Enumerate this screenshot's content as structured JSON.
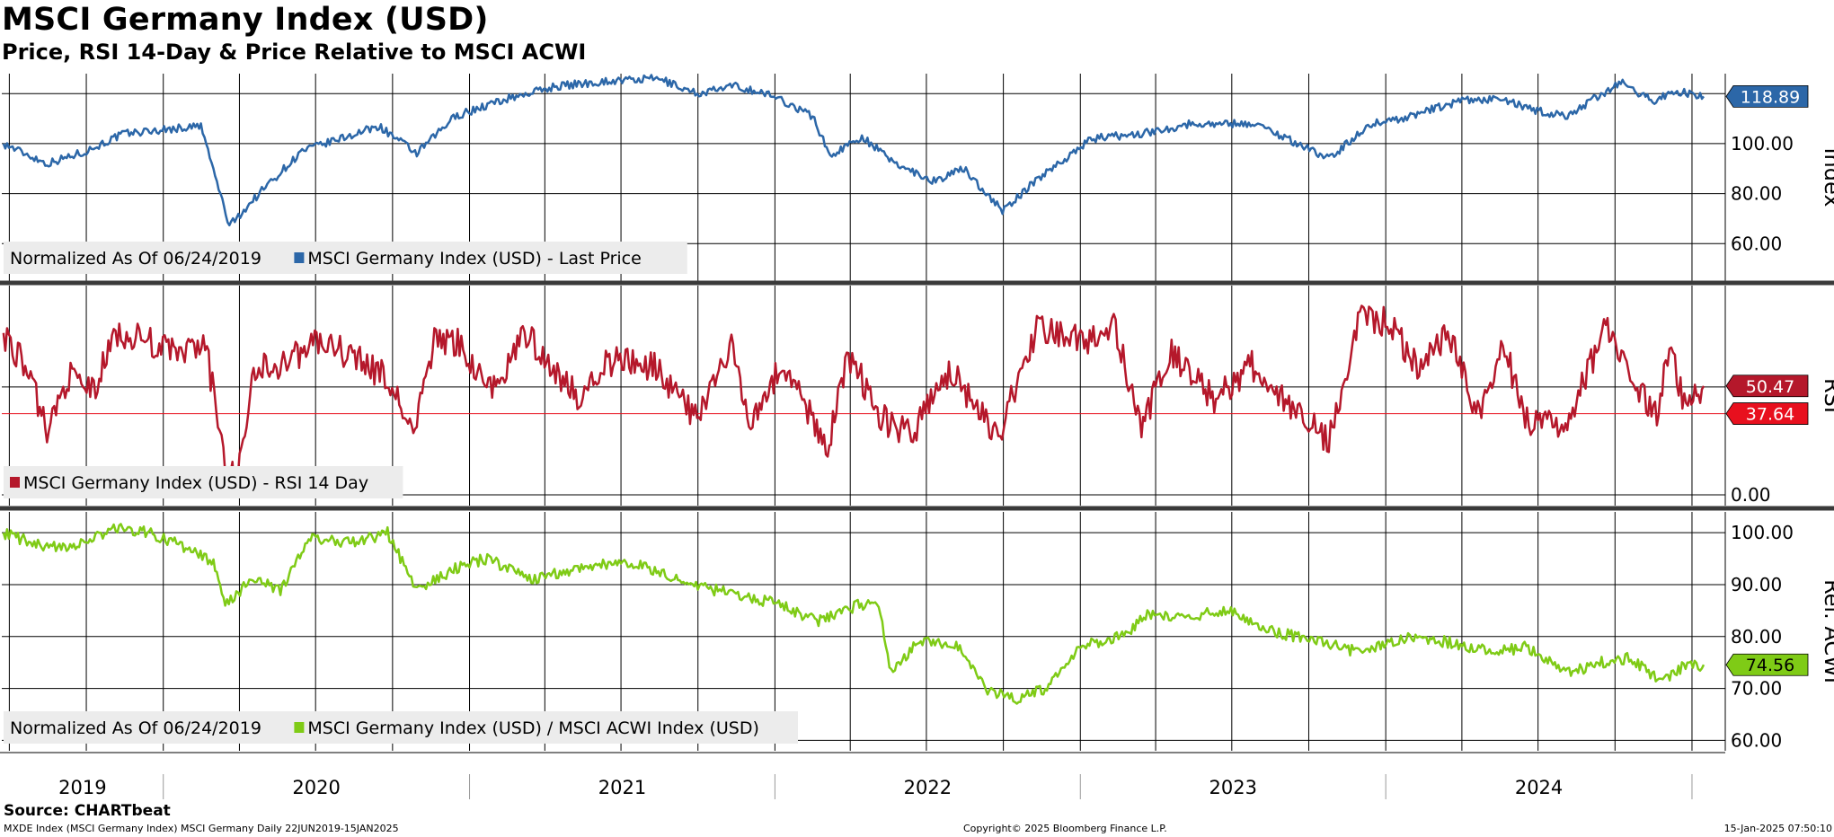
{
  "header": {
    "title": "MSCI Germany Index (USD)",
    "subtitle": "Price, RSI 14-Day & Price Relative to MSCI ACWI"
  },
  "footer": {
    "source": "Source: CHARTbeat",
    "ticker_info": "MXDE Index (MSCI Germany Index) MSCI Germany  Daily 22JUN2019-15JAN2025",
    "copyright": "Copyright© 2025 Bloomberg Finance L.P.",
    "timestamp": "15-Jan-2025 07:50:10"
  },
  "colors": {
    "price": "#2c67a8",
    "rsi": "#b5182b",
    "relative": "#7fcb16",
    "rsi_flag_current": "#e8101e",
    "grid": "#000000",
    "legend_bg": "#ececec"
  },
  "chart_data": [
    {
      "type": "line",
      "name": "price-panel",
      "axis_label": "Index",
      "ylim": [
        45,
        128
      ],
      "yticks": [
        "60.00",
        "80.00",
        "100.00"
      ],
      "ytick_values": [
        60,
        80,
        100
      ],
      "legend_note": "Normalized As Of 06/24/2019",
      "series": [
        {
          "name": "MSCI Germany Index (USD) - Last Price",
          "last_value_label": "118.89",
          "points": [
            [
              "2019-06-24",
              100
            ],
            [
              "2019-08-15",
              92
            ],
            [
              "2019-10-01",
              97
            ],
            [
              "2019-11-15",
              104
            ],
            [
              "2020-01-15",
              106
            ],
            [
              "2020-02-15",
              107
            ],
            [
              "2020-03-20",
              67
            ],
            [
              "2020-04-30",
              82
            ],
            [
              "2020-06-15",
              97
            ],
            [
              "2020-07-31",
              102
            ],
            [
              "2020-09-15",
              107
            ],
            [
              "2020-10-30",
              96
            ],
            [
              "2020-12-15",
              111
            ],
            [
              "2021-02-15",
              118
            ],
            [
              "2021-04-15",
              123
            ],
            [
              "2021-06-15",
              125
            ],
            [
              "2021-08-15",
              126
            ],
            [
              "2021-09-30",
              120
            ],
            [
              "2021-11-15",
              123
            ],
            [
              "2021-12-31",
              119
            ],
            [
              "2022-02-15",
              111
            ],
            [
              "2022-03-08",
              95
            ],
            [
              "2022-04-15",
              103
            ],
            [
              "2022-05-20",
              93
            ],
            [
              "2022-07-10",
              85
            ],
            [
              "2022-08-15",
              90
            ],
            [
              "2022-09-30",
              73
            ],
            [
              "2022-11-15",
              87
            ],
            [
              "2023-01-15",
              102
            ],
            [
              "2023-03-15",
              104
            ],
            [
              "2023-05-15",
              108
            ],
            [
              "2023-07-30",
              108
            ],
            [
              "2023-10-25",
              94
            ],
            [
              "2023-12-15",
              108
            ],
            [
              "2024-01-20",
              110
            ],
            [
              "2024-03-30",
              117
            ],
            [
              "2024-05-15",
              118
            ],
            [
              "2024-06-30",
              113
            ],
            [
              "2024-08-05",
              111
            ],
            [
              "2024-09-25",
              122
            ],
            [
              "2024-10-10",
              124
            ],
            [
              "2024-11-15",
              117
            ],
            [
              "2024-12-10",
              121
            ],
            [
              "2025-01-15",
              118.89
            ]
          ]
        }
      ]
    },
    {
      "type": "line",
      "name": "rsi-panel",
      "axis_label": "RSI",
      "ylim": [
        -5,
        97
      ],
      "yticks": [
        "0.00"
      ],
      "ytick_values": [
        0
      ],
      "reference_line": 37.64,
      "reference_label": "37.64",
      "legend_note": "",
      "series": [
        {
          "name": "MSCI Germany Index (USD) - RSI 14 Day",
          "last_value_label": "50.47",
          "points": [
            [
              "2019-06-24",
              75
            ],
            [
              "2019-07-20",
              60
            ],
            [
              "2019-08-15",
              30
            ],
            [
              "2019-09-10",
              55
            ],
            [
              "2019-10-10",
              48
            ],
            [
              "2019-11-05",
              75
            ],
            [
              "2019-12-10",
              72
            ],
            [
              "2020-01-20",
              65
            ],
            [
              "2020-02-20",
              70
            ],
            [
              "2020-03-15",
              15
            ],
            [
              "2020-03-28",
              8
            ],
            [
              "2020-04-20",
              58
            ],
            [
              "2020-06-01",
              62
            ],
            [
              "2020-06-30",
              72
            ],
            [
              "2020-08-10",
              65
            ],
            [
              "2020-09-20",
              55
            ],
            [
              "2020-10-28",
              30
            ],
            [
              "2020-11-20",
              72
            ],
            [
              "2020-12-20",
              70
            ],
            [
              "2021-01-28",
              48
            ],
            [
              "2021-03-10",
              75
            ],
            [
              "2021-05-10",
              45
            ],
            [
              "2021-06-15",
              62
            ],
            [
              "2021-08-10",
              60
            ],
            [
              "2021-09-30",
              35
            ],
            [
              "2021-11-10",
              68
            ],
            [
              "2021-12-01",
              35
            ],
            [
              "2022-01-10",
              60
            ],
            [
              "2022-03-05",
              22
            ],
            [
              "2022-03-30",
              65
            ],
            [
              "2022-05-10",
              35
            ],
            [
              "2022-06-15",
              28
            ],
            [
              "2022-07-30",
              58
            ],
            [
              "2022-09-25",
              27
            ],
            [
              "2022-11-10",
              78
            ],
            [
              "2023-01-10",
              70
            ],
            [
              "2023-02-10",
              80
            ],
            [
              "2023-03-15",
              32
            ],
            [
              "2023-04-20",
              65
            ],
            [
              "2023-06-10",
              45
            ],
            [
              "2023-07-25",
              60
            ],
            [
              "2023-09-20",
              38
            ],
            [
              "2023-10-25",
              25
            ],
            [
              "2023-12-01",
              82
            ],
            [
              "2024-01-05",
              80
            ],
            [
              "2024-02-10",
              58
            ],
            [
              "2024-03-15",
              76
            ],
            [
              "2024-04-20",
              38
            ],
            [
              "2024-05-20",
              70
            ],
            [
              "2024-06-20",
              32
            ],
            [
              "2024-08-05",
              33
            ],
            [
              "2024-09-20",
              78
            ],
            [
              "2024-10-15",
              58
            ],
            [
              "2024-11-20",
              36
            ],
            [
              "2024-12-05",
              68
            ],
            [
              "2024-12-25",
              40
            ],
            [
              "2025-01-15",
              50.47
            ]
          ]
        }
      ]
    },
    {
      "type": "line",
      "name": "relative-panel",
      "axis_label": "Rel. ACWI",
      "ylim": [
        58,
        104
      ],
      "yticks": [
        "60.00",
        "70.00",
        "80.00",
        "90.00",
        "100.00"
      ],
      "ytick_values": [
        60,
        70,
        80,
        90,
        100
      ],
      "legend_note": "Normalized As Of 06/24/2019",
      "series": [
        {
          "name": "MSCI Germany Index (USD) / MSCI ACWI Index (USD)",
          "last_value_label": "74.56",
          "points": [
            [
              "2019-06-24",
              100
            ],
            [
              "2019-08-15",
              97
            ],
            [
              "2019-10-01",
              98
            ],
            [
              "2019-11-05",
              101
            ],
            [
              "2019-12-15",
              100
            ],
            [
              "2020-01-30",
              97
            ],
            [
              "2020-03-01",
              94
            ],
            [
              "2020-03-15",
              86
            ],
            [
              "2020-04-15",
              91
            ],
            [
              "2020-05-20",
              89
            ],
            [
              "2020-06-25",
              99
            ],
            [
              "2020-08-15",
              98
            ],
            [
              "2020-09-25",
              100
            ],
            [
              "2020-10-30",
              89
            ],
            [
              "2020-12-15",
              93
            ],
            [
              "2021-01-20",
              95
            ],
            [
              "2021-03-20",
              91
            ],
            [
              "2021-06-01",
              94
            ],
            [
              "2021-07-20",
              94
            ],
            [
              "2021-09-20",
              90
            ],
            [
              "2021-11-20",
              88
            ],
            [
              "2022-01-10",
              86
            ],
            [
              "2022-02-20",
              83
            ],
            [
              "2022-03-15",
              84
            ],
            [
              "2022-04-10",
              86
            ],
            [
              "2022-05-05",
              86
            ],
            [
              "2022-05-20",
              73
            ],
            [
              "2022-06-20",
              79
            ],
            [
              "2022-08-10",
              78
            ],
            [
              "2022-09-10",
              70
            ],
            [
              "2022-10-15",
              68
            ],
            [
              "2022-11-20",
              70
            ],
            [
              "2022-12-30",
              78
            ],
            [
              "2023-02-20",
              80
            ],
            [
              "2023-03-20",
              84
            ],
            [
              "2023-05-15",
              84
            ],
            [
              "2023-06-30",
              85
            ],
            [
              "2023-08-20",
              81
            ],
            [
              "2023-10-10",
              79
            ],
            [
              "2023-11-30",
              77
            ],
            [
              "2024-01-10",
              79
            ],
            [
              "2024-02-10",
              80
            ],
            [
              "2024-04-10",
              78
            ],
            [
              "2024-05-15",
              77
            ],
            [
              "2024-06-15",
              78
            ],
            [
              "2024-08-05",
              73
            ],
            [
              "2024-09-15",
              75
            ],
            [
              "2024-10-20",
              76
            ],
            [
              "2024-11-25",
              71
            ],
            [
              "2024-12-20",
              74
            ],
            [
              "2025-01-15",
              74.56
            ]
          ]
        }
      ]
    }
  ],
  "x_axis": {
    "start": "2019-06-22",
    "end": "2025-01-15",
    "year_labels": [
      "2019",
      "2020",
      "2021",
      "2022",
      "2023",
      "2024"
    ]
  }
}
